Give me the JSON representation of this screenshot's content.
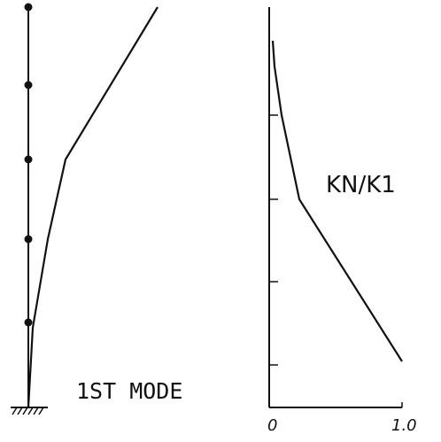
{
  "mode_label": "1ST MODE",
  "ratio_label": "KN/K1",
  "x_axis_ticks": [
    "0",
    "1.0"
  ],
  "colors": {
    "ink": "#111111",
    "background": "#ffffff"
  },
  "structure": {
    "mass_count": 5,
    "support": "fixed-base"
  },
  "chart_data": {
    "type": "line",
    "xlabel": "",
    "ylabel": "KN/K1",
    "xlim": [
      0,
      1.0
    ],
    "x_ticks": [
      "0",
      "1.0"
    ],
    "series": [
      {
        "values_x": [
          0.0,
          0.07,
          0.2,
          1.0
        ],
        "values_y": [
          1.0,
          0.8,
          0.6,
          0.0
        ]
      }
    ],
    "y_tick_count": 5
  }
}
